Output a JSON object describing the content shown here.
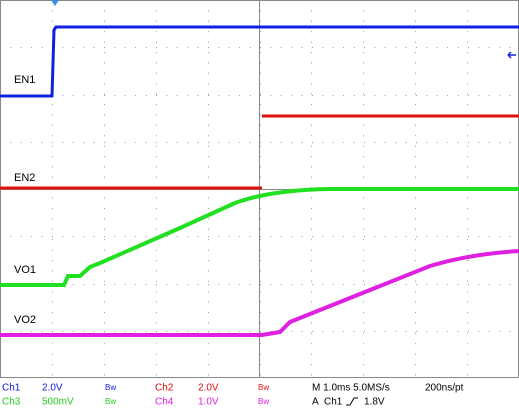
{
  "traces": [
    "EN1",
    "EN2",
    "VO1",
    "VO2"
  ],
  "status": {
    "ch1": {
      "name": "Ch1",
      "scale": "2.0V",
      "bw": "Bw"
    },
    "ch2": {
      "name": "Ch2",
      "scale": "2.0V",
      "bw": "Bw"
    },
    "ch3": {
      "name": "Ch3",
      "scale": "500mV",
      "bw": "Bw"
    },
    "ch4": {
      "name": "Ch4",
      "scale": "1.0V",
      "bw": "Bw"
    },
    "timebase": "M 1.0ms 5.0MS/s",
    "resolution": "200ns/pt",
    "trigger": {
      "mode": "A",
      "source": "Ch1",
      "level": "1.8V"
    }
  }
}
